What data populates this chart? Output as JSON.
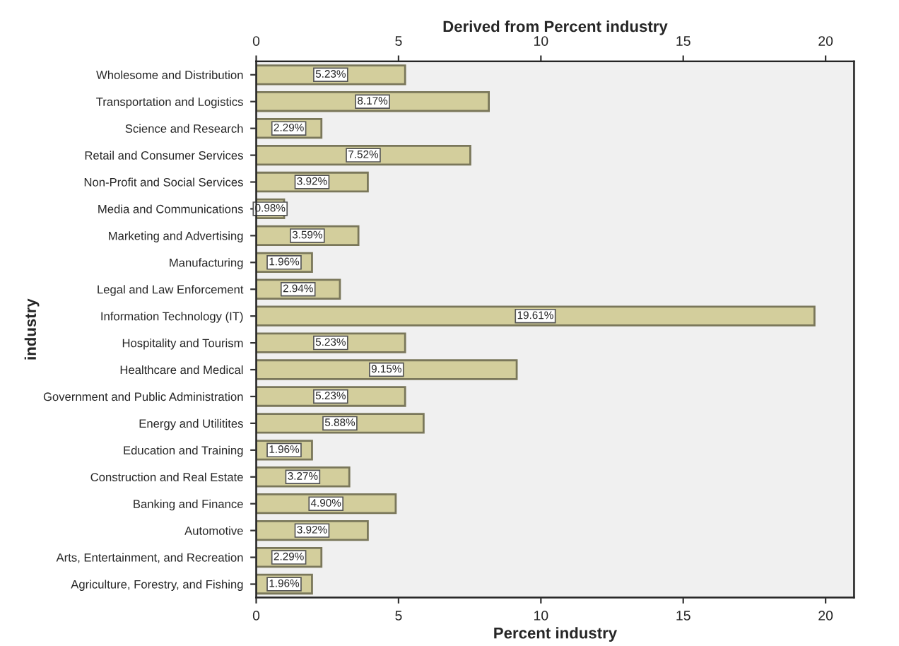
{
  "chart_data": {
    "type": "bar",
    "orientation": "horizontal",
    "xlabel": "Percent industry",
    "x2label": "Derived from Percent industry",
    "ylabel": "industry",
    "categories": [
      "Wholesome and Distribution",
      "Transportation and Logistics",
      "Science and Research",
      "Retail and Consumer Services",
      "Non-Profit and Social Services",
      "Media and Communications",
      "Marketing and Advertising",
      "Manufacturing",
      "Legal and Law Enforcement",
      "Information Technology (IT)",
      "Hospitality and Tourism",
      "Healthcare and Medical",
      "Government and Public Administration",
      "Energy and Utilitites",
      "Education and Training",
      "Construction and Real Estate",
      "Banking and Finance",
      "Automotive",
      "Arts, Entertainment, and Recreation",
      "Agriculture, Forestry, and Fishing"
    ],
    "values": [
      5.23,
      8.17,
      2.29,
      7.52,
      3.92,
      0.98,
      3.59,
      1.96,
      2.94,
      19.61,
      5.23,
      9.15,
      5.23,
      5.88,
      1.96,
      3.27,
      4.9,
      3.92,
      2.29,
      1.96
    ],
    "value_labels": [
      "5.23%",
      "8.17%",
      "2.29%",
      "7.52%",
      "3.92%",
      "0.98%",
      "3.59%",
      "1.96%",
      "2.94%",
      "19.61%",
      "5.23%",
      "9.15%",
      "5.23%",
      "5.88%",
      "1.96%",
      "3.27%",
      "4.90%",
      "3.92%",
      "2.29%",
      "1.96%"
    ],
    "color": "#d3ce9c",
    "xlim": [
      0,
      21
    ],
    "xticks": [
      0,
      5,
      10,
      15,
      20
    ],
    "x2lim": [
      0,
      21
    ],
    "x2ticks": [
      0,
      5,
      10,
      15,
      20
    ],
    "grid": false,
    "legend": false
  }
}
